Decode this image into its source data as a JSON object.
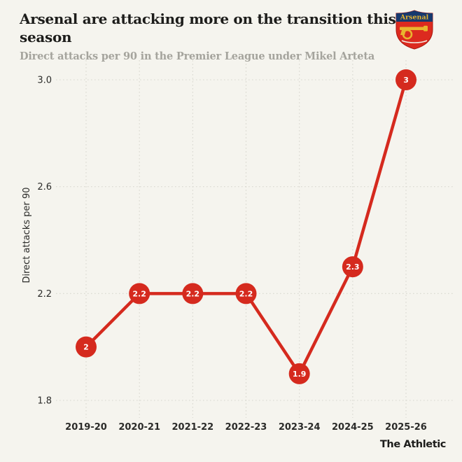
{
  "header": {
    "title": "Arsenal are attacking more on the transition this season",
    "subtitle": "Direct attacks per 90 in the Premier League under Mikel Arteta",
    "crest": {
      "club": "Arsenal",
      "label": "Arsenal"
    }
  },
  "footer": {
    "brand": "The Athletic"
  },
  "colors": {
    "background": "#f5f4ee",
    "accent_red": "#d52a1e",
    "grid": "#d8d7cf",
    "title_text": "#1d1d1b",
    "subtitle_text": "#a5a49d",
    "axis_text": "#2b2b29",
    "marker_label": "#ffffff",
    "crest_red": "#dc2a1f",
    "crest_navy": "#17396e",
    "crest_gold": "#e9b52f"
  },
  "chart_data": {
    "type": "line",
    "title": "Arsenal are attacking more on the transition this season",
    "subtitle": "Direct attacks per 90 in the Premier League under Mikel Arteta",
    "categories": [
      "2019-20",
      "2020-21",
      "2021-22",
      "2022-23",
      "2023-24",
      "2024-25",
      "2025-26"
    ],
    "series": [
      {
        "name": "Arsenal direct attacks per 90",
        "values": [
          2,
          2.2,
          2.2,
          2.2,
          1.9,
          2.3,
          3
        ]
      }
    ],
    "point_labels": [
      "2",
      "2.2",
      "2.2",
      "2.2",
      "1.9",
      "2.3",
      "3"
    ],
    "xlabel": "",
    "ylabel": "Direct attacks per 90",
    "yticks": [
      1.8,
      2.2,
      2.6,
      3.0
    ],
    "ytick_labels": [
      "1.8",
      "2.2",
      "2.6",
      "3.0"
    ],
    "ylim": [
      1.8,
      3.0
    ],
    "grid": "dotted",
    "legend": "none"
  }
}
